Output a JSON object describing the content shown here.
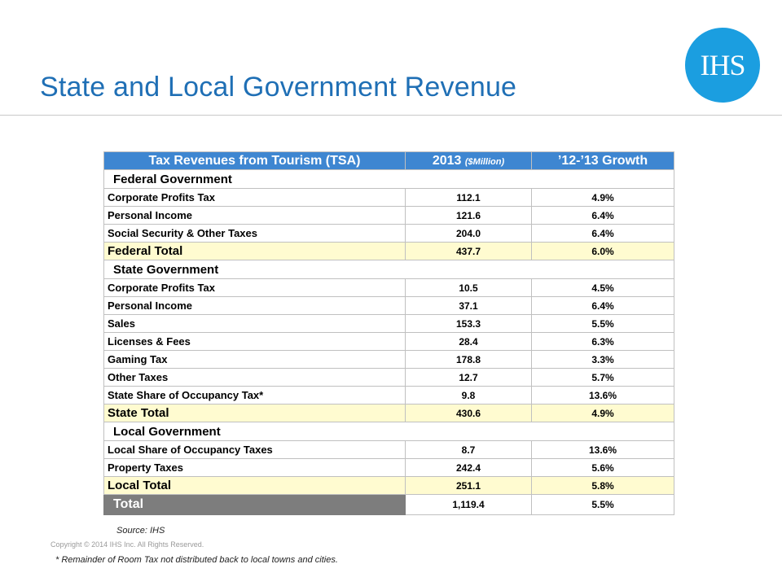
{
  "title": "State and Local Government Revenue",
  "logo": {
    "text": "IHS",
    "color": "#1b9ee0"
  },
  "table": {
    "header": {
      "col1": "Tax Revenues from Tourism (TSA)",
      "col2_main": "2013",
      "col2_unit": "($Million)",
      "col3": "’12-’13 Growth"
    },
    "federal": {
      "label": "Federal Government",
      "rows": [
        {
          "name": "Corporate Profits Tax",
          "value": "112.1",
          "growth": "4.9%"
        },
        {
          "name": "Personal Income",
          "value": "121.6",
          "growth": "6.4%"
        },
        {
          "name": "Social Security & Other Taxes",
          "value": "204.0",
          "growth": "6.4%"
        }
      ],
      "total": {
        "name": "Federal Total",
        "value": "437.7",
        "growth": "6.0%"
      }
    },
    "state": {
      "label": "State Government",
      "rows": [
        {
          "name": "Corporate Profits Tax",
          "value": "10.5",
          "growth": "4.5%"
        },
        {
          "name": "Personal Income",
          "value": "37.1",
          "growth": "6.4%"
        },
        {
          "name": "Sales",
          "value": "153.3",
          "growth": "5.5%"
        },
        {
          "name": "Licenses & Fees",
          "value": "28.4",
          "growth": "6.3%"
        },
        {
          "name": "Gaming Tax",
          "value": "178.8",
          "growth": "3.3%"
        },
        {
          "name": "Other Taxes",
          "value": "12.7",
          "growth": "5.7%"
        },
        {
          "name": "State Share of Occupancy Tax*",
          "value": "9.8",
          "growth": "13.6%"
        }
      ],
      "total": {
        "name": "State Total",
        "value": "430.6",
        "growth": "4.9%"
      }
    },
    "local": {
      "label": "Local Government",
      "rows": [
        {
          "name": "Local Share of Occupancy Taxes",
          "value": "8.7",
          "growth": "13.6%"
        },
        {
          "name": "Property Taxes",
          "value": "242.4",
          "growth": "5.6%"
        }
      ],
      "total": {
        "name": "Local Total",
        "value": "251.1",
        "growth": "5.8%"
      }
    },
    "grand_total": {
      "name": "Total",
      "value": "1,119.4",
      "growth": "5.5%"
    }
  },
  "source": "Source:  IHS",
  "copyright": "Copyright © 2014 IHS Inc. All Rights Reserved.",
  "footnote": "* Remainder  of Room Tax not distributed back to local towns and cities.",
  "colors": {
    "title": "#1f6fb5",
    "header_bg": "#3e86d1",
    "subtotal_bg": "#fffbd0",
    "total_bg": "#7d7d7d"
  }
}
